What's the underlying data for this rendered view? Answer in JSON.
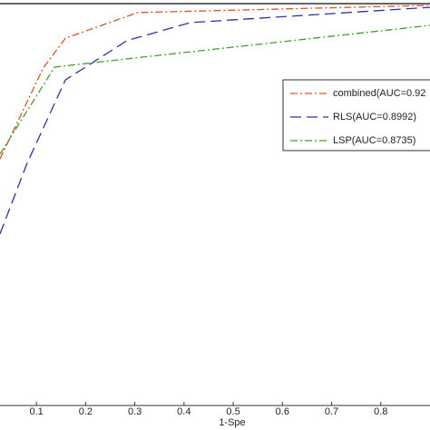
{
  "chart_data": {
    "type": "line",
    "x_label": "1-Spe",
    "xlim": [
      0.026,
      0.9
    ],
    "ylim": [
      0,
      1
    ],
    "xticks": [
      0.1,
      0.2,
      0.3,
      0.4,
      0.5,
      0.6,
      0.7,
      0.8
    ],
    "legend": "upper right",
    "series": [
      {
        "name": "combined(AUC=0.92",
        "color": "#d95319",
        "dash": "8 3 2 3",
        "x": [
          0.026,
          0.114,
          0.159,
          0.306,
          0.9
        ],
        "values": [
          0.615,
          0.842,
          0.916,
          0.98,
          0.998
        ]
      },
      {
        "name": "RLS(AUC=0.8992)",
        "color": "#3030a0",
        "dash": "12 6",
        "x": [
          0.026,
          0.081,
          0.159,
          0.284,
          0.413,
          0.9
        ],
        "values": [
          0.428,
          0.604,
          0.812,
          0.91,
          0.955,
          0.993
        ]
      },
      {
        "name": "LSP(AUC=0.8735)",
        "color": "#4a9a2a",
        "dash": "8 3 2 3",
        "x": [
          0.026,
          0.137,
          0.302,
          0.9
        ],
        "values": [
          0.627,
          0.844,
          0.867,
          0.948
        ]
      }
    ]
  }
}
